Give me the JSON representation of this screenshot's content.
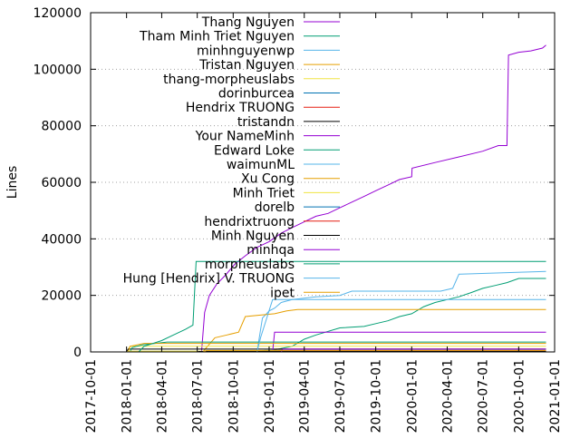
{
  "chart_data": {
    "type": "line",
    "title": "",
    "xlabel": "",
    "ylabel": "Lines",
    "ylim": [
      0,
      120000
    ],
    "yticks": [
      0,
      20000,
      40000,
      60000,
      80000,
      100000,
      120000
    ],
    "xlim": [
      "2017-10-01",
      "2021-01-01"
    ],
    "xticks": [
      "2017-10-01",
      "2018-01-01",
      "2018-04-01",
      "2018-07-01",
      "2018-10-01",
      "2019-01-01",
      "2019-04-01",
      "2019-07-01",
      "2019-10-01",
      "2020-01-01",
      "2020-04-01",
      "2020-07-01",
      "2020-10-01",
      "2021-01-01"
    ],
    "ygrid": true,
    "ygrid_style": "dotted",
    "legend_position": "top-left, inside",
    "series": [
      {
        "name": "Thang Nguyen",
        "color": "#9400d3",
        "x": [
          "2018-07-12",
          "2018-07-20",
          "2018-08-01",
          "2018-08-20",
          "2018-09-10",
          "2018-10-05",
          "2018-11-01",
          "2018-12-01",
          "2019-01-01",
          "2019-02-01",
          "2019-03-01",
          "2019-04-01",
          "2019-05-01",
          "2019-06-01",
          "2019-07-01",
          "2019-08-01",
          "2019-09-01",
          "2019-10-01",
          "2019-11-01",
          "2019-12-01",
          "2020-01-01",
          "2020-01-02",
          "2020-03-01",
          "2020-05-01",
          "2020-07-01",
          "2020-08-10",
          "2020-09-01",
          "2020-09-05",
          "2020-10-01",
          "2020-11-01",
          "2020-12-01",
          "2020-12-10"
        ],
        "y": [
          0,
          14000,
          20000,
          24000,
          27000,
          31000,
          34000,
          37000,
          39000,
          42000,
          44000,
          46000,
          48000,
          49000,
          51000,
          53000,
          55000,
          57000,
          59000,
          61000,
          62000,
          65000,
          67000,
          69000,
          71000,
          73000,
          73000,
          105000,
          106000,
          106500,
          107500,
          108500
        ]
      },
      {
        "name": "Tham Minh Triet Nguyen",
        "color": "#009e73",
        "x": [
          "2018-12-20",
          "2019-03-01",
          "2019-04-01",
          "2019-05-01",
          "2019-07-01",
          "2019-09-01",
          "2019-10-01",
          "2019-11-01",
          "2019-12-01",
          "2020-01-01",
          "2020-02-01",
          "2020-03-01",
          "2020-04-01",
          "2020-05-01",
          "2020-06-01",
          "2020-07-01",
          "2020-08-01",
          "2020-09-01",
          "2020-10-01",
          "2020-12-10"
        ],
        "y": [
          0,
          2000,
          4500,
          6000,
          8500,
          9000,
          10000,
          11000,
          12500,
          13500,
          16000,
          17500,
          18500,
          19500,
          21000,
          22500,
          23500,
          24500,
          26000,
          26000
        ]
      },
      {
        "name": "minhnguyenwp",
        "color": "#56b4e9",
        "x": [
          "2018-12-01",
          "2018-12-15",
          "2019-01-01",
          "2019-01-15",
          "2019-02-01",
          "2019-03-01",
          "2019-05-01",
          "2019-07-01",
          "2019-08-01",
          "2020-03-15",
          "2020-04-15",
          "2020-05-01",
          "2020-12-10"
        ],
        "y": [
          0,
          12000,
          14500,
          15500,
          17500,
          18500,
          19500,
          20000,
          21500,
          21500,
          22500,
          27500,
          28500
        ]
      },
      {
        "name": "Tristan Nguyen",
        "color": "#e69f00",
        "x": [
          "2018-07-15",
          "2018-08-15",
          "2018-09-15",
          "2018-10-15",
          "2018-11-01",
          "2019-01-15",
          "2019-02-15",
          "2019-03-15",
          "2020-12-10"
        ],
        "y": [
          0,
          5000,
          6000,
          7000,
          12500,
          13500,
          14500,
          15000,
          15000
        ]
      },
      {
        "name": "thang-morpheuslabs",
        "color": "#f0e442",
        "x": [
          "2018-01-01",
          "2018-01-10",
          "2020-12-10"
        ],
        "y": [
          0,
          2000,
          2000
        ]
      },
      {
        "name": "dorinburcea",
        "color": "#0072b2",
        "x": [
          "2018-12-10",
          "2018-12-20",
          "2020-12-10"
        ],
        "y": [
          0,
          500,
          500
        ]
      },
      {
        "name": "Hendrix TRUONG",
        "color": "#e51e10",
        "x": [
          "2019-01-10",
          "2019-01-20",
          "2020-12-10"
        ],
        "y": [
          0,
          1000,
          1000
        ]
      },
      {
        "name": "tristandn",
        "color": "#000000",
        "x": [
          "2018-01-01",
          "2018-01-05",
          "2020-12-10"
        ],
        "y": [
          0,
          1000,
          1000
        ]
      },
      {
        "name": "Your NameMinh",
        "color": "#9400d3",
        "x": [
          "2019-01-10",
          "2019-01-15",
          "2020-12-10"
        ],
        "y": [
          0,
          7000,
          7000
        ]
      },
      {
        "name": "Edward Loke",
        "color": "#009e73",
        "x": [
          "2018-01-10",
          "2018-01-15",
          "2018-02-10",
          "2018-04-15",
          "2020-12-10"
        ],
        "y": [
          0,
          1500,
          2500,
          3500,
          3500
        ]
      },
      {
        "name": "waimunML",
        "color": "#56b4e9",
        "x": [
          "2018-12-28",
          "2019-01-05",
          "2020-12-10"
        ],
        "y": [
          0,
          500,
          500
        ]
      },
      {
        "name": "Xu Cong",
        "color": "#e69f00",
        "x": [
          "2018-01-05",
          "2018-01-10",
          "2018-02-15",
          "2020-12-10"
        ],
        "y": [
          0,
          2000,
          3000,
          3000
        ]
      },
      {
        "name": "Minh Triet",
        "color": "#f0e442",
        "x": [
          "2018-01-01",
          "2018-01-05",
          "2020-12-10"
        ],
        "y": [
          0,
          300,
          300
        ]
      },
      {
        "name": "dorelb",
        "color": "#0072b2",
        "x": [
          "2018-12-10",
          "2018-12-15",
          "2020-12-10"
        ],
        "y": [
          0,
          200,
          200
        ]
      },
      {
        "name": "hendrixtruong",
        "color": "#e51e10",
        "x": [
          "2019-01-20",
          "2019-01-25",
          "2020-12-10"
        ],
        "y": [
          0,
          300,
          300
        ]
      },
      {
        "name": "Minh Nguyen",
        "color": "#000000",
        "x": [
          "2018-07-01",
          "2018-07-05",
          "2020-12-10"
        ],
        "y": [
          0,
          150,
          150
        ]
      },
      {
        "name": "minhqa",
        "color": "#9400d3",
        "x": [
          "2019-02-01",
          "2019-02-05",
          "2020-12-10"
        ],
        "y": [
          0,
          1000,
          1000
        ]
      },
      {
        "name": "morpheuslabs",
        "color": "#009e73",
        "x": [
          "2018-02-01",
          "2018-02-15",
          "2018-04-01",
          "2018-05-01",
          "2018-06-01",
          "2018-06-20",
          "2018-06-28",
          "2020-12-10"
        ],
        "y": [
          0,
          2000,
          4000,
          6000,
          8000,
          9500,
          32000,
          32000
        ]
      },
      {
        "name": "Hung [Hendrix] V. TRUONG",
        "color": "#56b4e9",
        "x": [
          "2018-12-01",
          "2018-12-10",
          "2019-01-10",
          "2020-12-10"
        ],
        "y": [
          0,
          5000,
          18500,
          18500
        ]
      },
      {
        "name": "ipet",
        "color": "#e69f00",
        "x": [
          "2018-07-15",
          "2018-07-25",
          "2020-12-10"
        ],
        "y": [
          0,
          500,
          500
        ]
      }
    ]
  }
}
